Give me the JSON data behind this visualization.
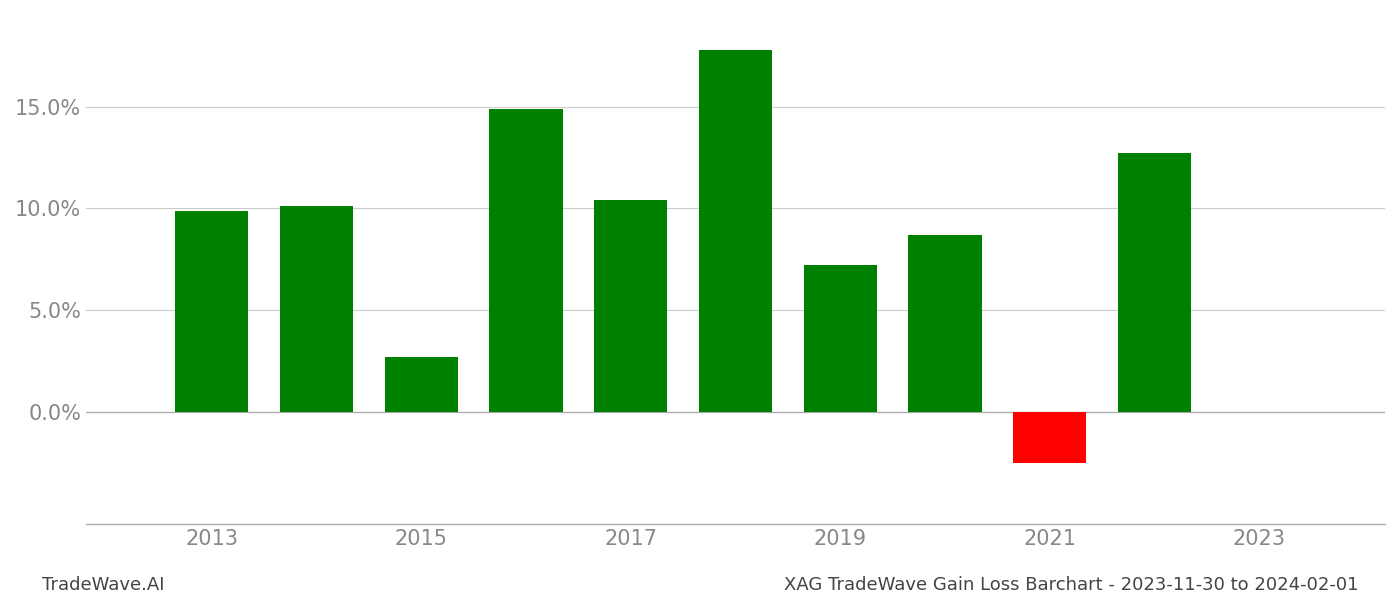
{
  "years": [
    2013,
    2014,
    2015,
    2016,
    2017,
    2018,
    2019,
    2020,
    2021,
    2022
  ],
  "values": [
    0.099,
    0.101,
    0.027,
    0.149,
    0.104,
    0.178,
    0.072,
    0.087,
    -0.025,
    0.127
  ],
  "colors": [
    "#008000",
    "#008000",
    "#008000",
    "#008000",
    "#008000",
    "#008000",
    "#008000",
    "#008000",
    "#ff0000",
    "#008000"
  ],
  "title": "XAG TradeWave Gain Loss Barchart - 2023-11-30 to 2024-02-01",
  "watermark": "TradeWave.AI",
  "ylim_min": -0.055,
  "ylim_max": 0.195,
  "yticks": [
    0.0,
    0.05,
    0.1,
    0.15
  ],
  "ytick_labels": [
    "0.0%",
    "5.0%",
    "10.0%",
    "15.0%"
  ],
  "background_color": "#ffffff",
  "grid_color": "#cccccc",
  "bar_width": 0.7,
  "tick_fontsize": 15,
  "title_fontsize": 13,
  "watermark_fontsize": 13
}
